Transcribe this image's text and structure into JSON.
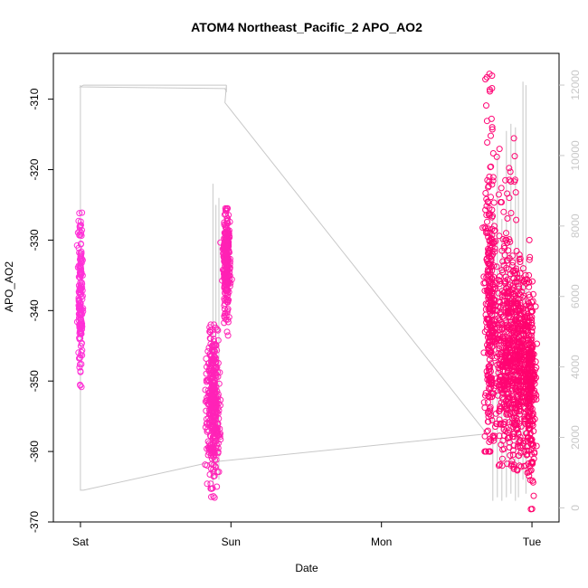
{
  "chart_data": {
    "type": "scatter",
    "title": "ATOM4 Northeast_Pacific_2 APO_AO2",
    "xlabel": "Date",
    "ylabel": "APO_AO2",
    "x_ticks": [
      "Sat",
      "Sun",
      "Mon",
      "Tue"
    ],
    "x_tick_positions": [
      0,
      1,
      2,
      3
    ],
    "xlim": [
      -0.18,
      3.18
    ],
    "ylim": [
      -370,
      -303.5
    ],
    "y_ticks": [
      -370,
      -360,
      -350,
      -340,
      -330,
      -320,
      -310
    ],
    "y2_ticks": [
      0,
      2000,
      4000,
      6000,
      8000,
      10000,
      12000
    ],
    "y2lim": [
      -400,
      12900
    ],
    "grid": false,
    "colors": {
      "points_start": "#ff33dd",
      "points_end": "#ff0066",
      "line": "#c8c8c8",
      "y2_axis": "#c8c8c8",
      "axis": "#000000"
    },
    "series": [
      {
        "kind": "scatter",
        "axis": "left",
        "clusters": [
          {
            "x_center": 0.0,
            "x_spread": 0.008,
            "y_min": -351.5,
            "y_max": -325.5,
            "y_mean": -338,
            "count": 160
          },
          {
            "x_center": 0.88,
            "x_spread": 0.02,
            "y_min": -367,
            "y_max": -342,
            "y_mean": -353,
            "count": 380
          },
          {
            "x_center": 0.97,
            "x_spread": 0.012,
            "y_min": -344,
            "y_max": -325.5,
            "y_mean": -333,
            "count": 260
          },
          {
            "x_center": 2.72,
            "x_spread": 0.015,
            "y_min": -360,
            "y_max": -305.5,
            "y_mean": -340,
            "count": 300
          },
          {
            "x_center": 2.82,
            "x_spread": 0.04,
            "y_min": -362,
            "y_max": -315,
            "y_mean": -345,
            "count": 380
          },
          {
            "x_center": 2.92,
            "x_spread": 0.045,
            "y_min": -363,
            "y_max": -330,
            "y_mean": -347,
            "count": 480
          },
          {
            "x_center": 2.99,
            "x_spread": 0.015,
            "y_min": -369,
            "y_max": -335,
            "y_mean": -352,
            "count": 220
          }
        ]
      },
      {
        "kind": "line",
        "axis": "right",
        "points": [
          [
            0.0,
            12000
          ],
          [
            0.0,
            500
          ],
          [
            0.02,
            500
          ],
          [
            0.87,
            1300
          ],
          [
            2.7,
            2100
          ],
          [
            0.96,
            11500
          ],
          [
            0.97,
            12000
          ],
          [
            0.97,
            11800
          ],
          [
            0.96,
            11900
          ],
          [
            0.0,
            11950
          ],
          [
            0.02,
            12000
          ],
          [
            0.97,
            12000
          ]
        ]
      }
    ]
  }
}
